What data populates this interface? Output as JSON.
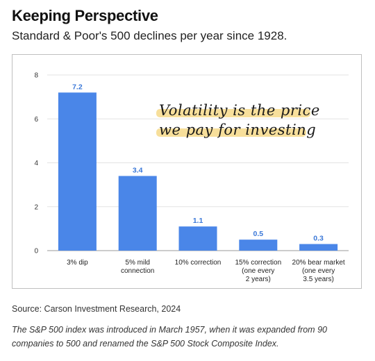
{
  "header": {
    "title": "Keeping Perspective",
    "subtitle": "Standard & Poor's 500 declines per year since 1928."
  },
  "chart_data": {
    "type": "bar",
    "categories": [
      [
        "3% dip"
      ],
      [
        "5% mild",
        "connection"
      ],
      [
        "10% correction"
      ],
      [
        "15% correction",
        "(one every",
        "2 years)"
      ],
      [
        "20% bear market",
        "(one every",
        "3.5 years)"
      ]
    ],
    "values": [
      7.2,
      3.4,
      1.1,
      0.5,
      0.3
    ],
    "value_labels": [
      "7.2",
      "3.4",
      "1.1",
      "0.5",
      "0.3"
    ],
    "yticks": [
      "0",
      "2",
      "4",
      "6",
      "8"
    ],
    "ylim": [
      0,
      8
    ],
    "grid": true,
    "bar_color": "#4a86e8",
    "annotation": {
      "lines": [
        "Volatility is the price",
        "we pay for investing"
      ],
      "highlight_color": "#f6d98a"
    }
  },
  "source": "Source: Carson Investment Research, 2024",
  "footnote": "The S&P 500 index was introduced in March 1957, when it was expanded from 90 companies to 500 and renamed the S&P 500 Stock Composite Index."
}
